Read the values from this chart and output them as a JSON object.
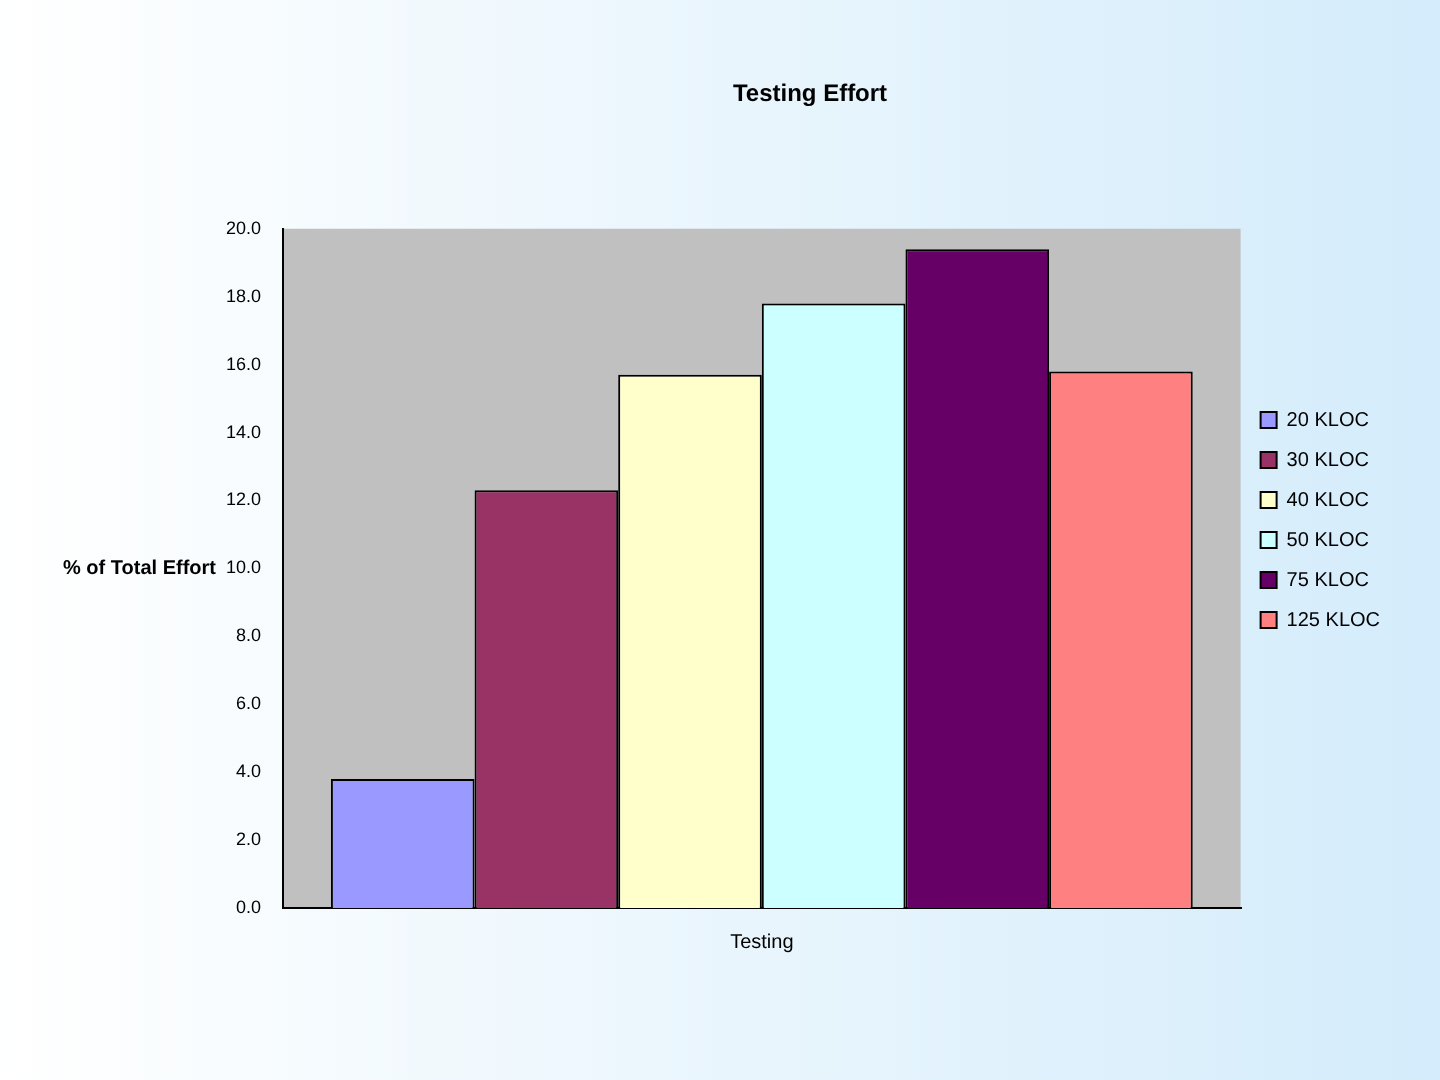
{
  "chart_data": {
    "type": "bar",
    "title": "Testing Effort",
    "ylabel": "% of Total Effort",
    "categories": [
      "Testing"
    ],
    "series": [
      {
        "name": "20 KLOC",
        "color": "#9999ff",
        "values": [
          3.8
        ]
      },
      {
        "name": "30 KLOC",
        "color": "#993366",
        "values": [
          12.3
        ]
      },
      {
        "name": "40 KLOC",
        "color": "#ffffcc",
        "values": [
          15.7
        ]
      },
      {
        "name": "50 KLOC",
        "color": "#ccffff",
        "values": [
          17.8
        ]
      },
      {
        "name": "75 KLOC",
        "color": "#660066",
        "values": [
          19.4
        ]
      },
      {
        "name": "125 KLOC",
        "color": "#ff8080",
        "values": [
          15.8
        ]
      }
    ],
    "ylim": [
      0,
      20
    ],
    "yticks": [
      {
        "value": 0,
        "label": "0.0"
      },
      {
        "value": 2,
        "label": "2.0"
      },
      {
        "value": 4,
        "label": "4.0"
      },
      {
        "value": 6,
        "label": "6.0"
      },
      {
        "value": 8,
        "label": "8.0"
      },
      {
        "value": 10,
        "label": "10.0"
      },
      {
        "value": 12,
        "label": "12.0"
      },
      {
        "value": 14,
        "label": "14.0"
      },
      {
        "value": 16,
        "label": "16.0"
      },
      {
        "value": 18,
        "label": "18.0"
      },
      {
        "value": 20,
        "label": "20.0"
      }
    ],
    "legend": "right"
  }
}
